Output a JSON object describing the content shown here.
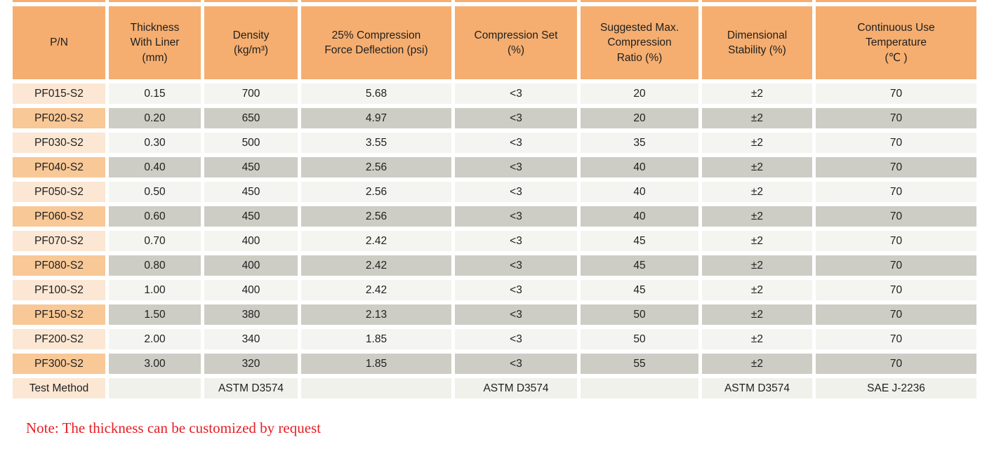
{
  "table": {
    "columns": [
      {
        "label": "P/N"
      },
      {
        "label": "Thickness\nWith Liner\n(mm)"
      },
      {
        "label": "Density\n(kg/m³)"
      },
      {
        "label": "25% Compression\nForce Deflection (psi)"
      },
      {
        "label": "Compression Set\n(%)"
      },
      {
        "label": "Suggested Max.\nCompression\nRatio (%)"
      },
      {
        "label": "Dimensional\nStability (%)"
      },
      {
        "label": "Continuous Use\nTemperature\n(℃ )"
      }
    ],
    "rows": [
      {
        "pn": "PF015-S2",
        "values": [
          "0.15",
          "700",
          "5.68",
          "<3",
          "20",
          "±2",
          "70"
        ]
      },
      {
        "pn": "PF020-S2",
        "values": [
          "0.20",
          "650",
          "4.97",
          "<3",
          "20",
          "±2",
          "70"
        ]
      },
      {
        "pn": "PF030-S2",
        "values": [
          "0.30",
          "500",
          "3.55",
          "<3",
          "35",
          "±2",
          "70"
        ]
      },
      {
        "pn": "PF040-S2",
        "values": [
          "0.40",
          "450",
          "2.56",
          "<3",
          "40",
          "±2",
          "70"
        ]
      },
      {
        "pn": "PF050-S2",
        "values": [
          "0.50",
          "450",
          "2.56",
          "<3",
          "40",
          "±2",
          "70"
        ]
      },
      {
        "pn": "PF060-S2",
        "values": [
          "0.60",
          "450",
          "2.56",
          "<3",
          "40",
          "±2",
          "70"
        ]
      },
      {
        "pn": "PF070-S2",
        "values": [
          "0.70",
          "400",
          "2.42",
          "<3",
          "45",
          "±2",
          "70"
        ]
      },
      {
        "pn": "PF080-S2",
        "values": [
          "0.80",
          "400",
          "2.42",
          "<3",
          "45",
          "±2",
          "70"
        ]
      },
      {
        "pn": "PF100-S2",
        "values": [
          "1.00",
          "400",
          "2.42",
          "<3",
          "45",
          "±2",
          "70"
        ]
      },
      {
        "pn": "PF150-S2",
        "values": [
          "1.50",
          "380",
          "2.13",
          "<3",
          "50",
          "±2",
          "70"
        ]
      },
      {
        "pn": "PF200-S2",
        "values": [
          "2.00",
          "340",
          "1.85",
          "<3",
          "50",
          "±2",
          "70"
        ]
      },
      {
        "pn": "PF300-S2",
        "values": [
          "3.00",
          "320",
          "1.85",
          "<3",
          "55",
          "±2",
          "70"
        ]
      }
    ],
    "test_method_row": {
      "label": "Test Method",
      "values": [
        "",
        "ASTM D3574",
        "",
        "ASTM D3574",
        "",
        "ASTM D3574",
        "SAE J-2236"
      ]
    }
  },
  "note": "Note: The thickness can be customized by request",
  "colors": {
    "header_orange": "#F5AE70",
    "pn_light": "#FBE7D3",
    "pn_dark": "#F8C897",
    "data_light": "#F4F4F0",
    "data_dark": "#CDCDC5",
    "test_cell_bg": "#F1F1EC",
    "text_color": "#1F1F1F",
    "note_red": "#E61E25",
    "page_bg": "#FFFFFF"
  }
}
